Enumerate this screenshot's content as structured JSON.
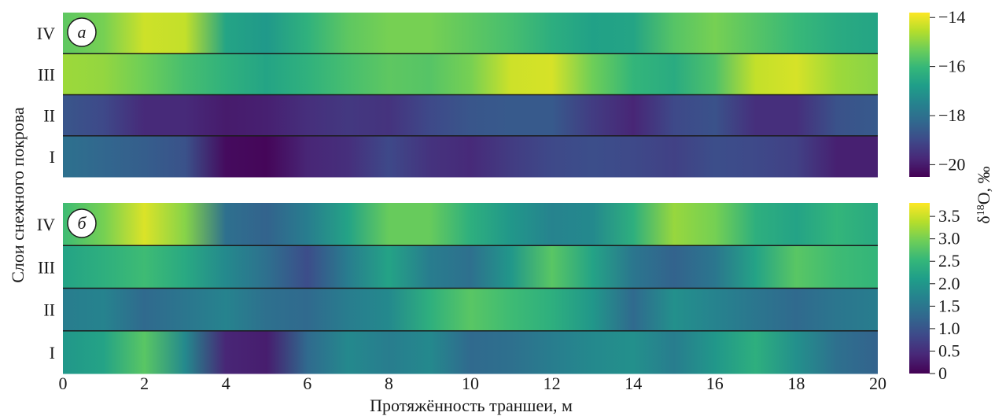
{
  "chart_data": {
    "type": "heatmap",
    "x_axis": {
      "label": "Протяжённость траншеи, м",
      "range": [
        0,
        20
      ],
      "ticks": [
        "0",
        "2",
        "4",
        "6",
        "8",
        "10",
        "12",
        "14",
        "16",
        "18",
        "20"
      ]
    },
    "y_axis": {
      "label": "Слои снежного покрова",
      "categories": [
        "IV",
        "III",
        "II",
        "I"
      ]
    },
    "panels": [
      {
        "tag": "а",
        "colorbar": {
          "label": "δ18O, ‰",
          "range": [
            -20.5,
            -13.8
          ],
          "ticks": [
            "−14",
            "−16",
            "−18",
            "−20"
          ],
          "tick_values": [
            -14,
            -16,
            -18,
            -20
          ]
        },
        "layers": [
          {
            "layer": "IV",
            "x": [
              0,
              1,
              2,
              3,
              4,
              5,
              6,
              7,
              8,
              9,
              10,
              11,
              12,
              13,
              14,
              15,
              16,
              17,
              18,
              19,
              20
            ],
            "values": [
              -15.5,
              -15.2,
              -14.3,
              -14.4,
              -16.6,
              -16.9,
              -16.2,
              -15.5,
              -15.2,
              -15.2,
              -15.5,
              -15.8,
              -16.3,
              -16.7,
              -16.6,
              -15.6,
              -15.2,
              -15.6,
              -16.0,
              -16.4,
              -16.6
            ]
          },
          {
            "layer": "III",
            "x": [
              0,
              1,
              2,
              3,
              4,
              5,
              6,
              7,
              8,
              9,
              10,
              11,
              12,
              13,
              14,
              15,
              16,
              17,
              18,
              19,
              20
            ],
            "values": [
              -14.8,
              -14.9,
              -15.3,
              -15.8,
              -16.2,
              -16.6,
              -16.2,
              -15.8,
              -15.5,
              -15.6,
              -15.2,
              -14.3,
              -14.2,
              -15.3,
              -16.1,
              -16.4,
              -15.7,
              -14.4,
              -14.2,
              -14.8,
              -15.0
            ]
          },
          {
            "layer": "II",
            "x": [
              0,
              1,
              2,
              3,
              4,
              5,
              6,
              7,
              8,
              9,
              10,
              11,
              12,
              13,
              14,
              15,
              16,
              17,
              18,
              19,
              20
            ],
            "values": [
              -18.7,
              -19.0,
              -19.7,
              -19.7,
              -20.0,
              -19.9,
              -19.6,
              -19.4,
              -19.5,
              -19.0,
              -18.7,
              -18.6,
              -18.6,
              -19.3,
              -19.8,
              -19.0,
              -18.8,
              -19.6,
              -19.6,
              -18.8,
              -18.6
            ]
          },
          {
            "layer": "I",
            "x": [
              0,
              1,
              2,
              3,
              4,
              5,
              6,
              7,
              8,
              9,
              10,
              11,
              12,
              13,
              14,
              15,
              16,
              17,
              18,
              19,
              20
            ],
            "values": [
              -18.0,
              -18.3,
              -18.5,
              -18.8,
              -20.3,
              -20.4,
              -19.8,
              -19.6,
              -19.0,
              -19.5,
              -19.7,
              -19.3,
              -19.0,
              -18.9,
              -19.0,
              -19.2,
              -18.9,
              -19.0,
              -19.2,
              -19.9,
              -19.9
            ]
          }
        ]
      },
      {
        "tag": "б",
        "colorbar": {
          "label": "",
          "range": [
            0,
            3.8
          ],
          "ticks": [
            "3.5",
            "3.0",
            "2.5",
            "2.0",
            "1.5",
            "1.0",
            "0.5",
            "0"
          ],
          "tick_values": [
            3.5,
            3.0,
            2.5,
            2.0,
            1.5,
            1.0,
            0.5,
            0
          ]
        },
        "layers": [
          {
            "layer": "IV",
            "x": [
              0,
              1,
              2,
              3,
              4,
              5,
              6,
              7,
              8,
              9,
              10,
              11,
              12,
              13,
              14,
              15,
              16,
              17,
              18,
              19,
              20
            ],
            "values": [
              2.6,
              3.0,
              3.6,
              3.1,
              1.4,
              1.2,
              1.6,
              2.2,
              2.9,
              2.9,
              2.4,
              2.0,
              1.7,
              1.8,
              2.4,
              3.2,
              3.0,
              2.4,
              2.2,
              2.5,
              2.3
            ]
          },
          {
            "layer": "III",
            "x": [
              0,
              1,
              2,
              3,
              4,
              5,
              6,
              7,
              8,
              9,
              10,
              11,
              12,
              13,
              14,
              15,
              16,
              17,
              18,
              19,
              20
            ],
            "values": [
              2.2,
              2.4,
              2.6,
              2.3,
              1.8,
              1.4,
              0.9,
              1.6,
              2.2,
              1.6,
              1.4,
              2.0,
              2.8,
              2.2,
              1.5,
              1.2,
              1.5,
              2.2,
              2.8,
              2.6,
              2.5
            ]
          },
          {
            "layer": "II",
            "x": [
              0,
              1,
              2,
              3,
              4,
              5,
              6,
              7,
              8,
              9,
              10,
              11,
              12,
              13,
              14,
              15,
              16,
              17,
              18,
              19,
              20
            ],
            "values": [
              1.6,
              1.7,
              1.3,
              1.5,
              1.7,
              1.4,
              1.3,
              1.6,
              1.8,
              2.4,
              2.8,
              2.6,
              2.4,
              2.0,
              1.3,
              1.9,
              1.7,
              1.5,
              1.3,
              1.5,
              1.6
            ]
          },
          {
            "layer": "I",
            "x": [
              0,
              1,
              2,
              3,
              4,
              5,
              6,
              7,
              8,
              9,
              10,
              11,
              12,
              13,
              14,
              15,
              16,
              17,
              18,
              19,
              20
            ],
            "values": [
              2.0,
              2.2,
              2.8,
              1.8,
              0.4,
              0.3,
              1.3,
              1.8,
              1.6,
              1.8,
              1.3,
              1.4,
              1.6,
              1.8,
              1.9,
              1.6,
              2.0,
              2.4,
              1.9,
              1.4,
              1.2
            ]
          }
        ]
      }
    ]
  }
}
